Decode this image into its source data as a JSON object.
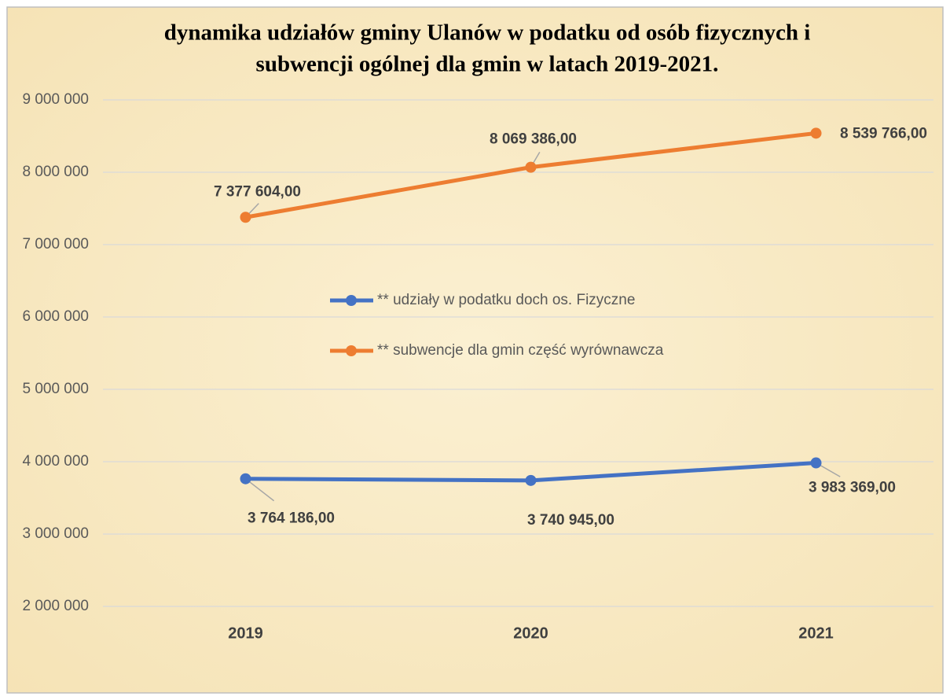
{
  "chart_data": {
    "type": "line",
    "title": [
      "dynamika udziałów gminy Ulanów w podatku od osób fizycznych i",
      "subwencji ogólnej dla gmin w latach 2019-2021."
    ],
    "categories": [
      "2019",
      "2020",
      "2021"
    ],
    "series": [
      {
        "name": "** udziały w podatku doch os. Fizyczne",
        "color": "#4472c4",
        "values": [
          3764186,
          3740945,
          3983369
        ],
        "value_labels": [
          "3 764 186,00",
          "3 740 945,00",
          "3 983 369,00"
        ]
      },
      {
        "name": "** subwencje dla gmin część wyrównawcza",
        "color": "#ed7d31",
        "values": [
          7377604,
          8069386,
          8539766
        ],
        "value_labels": [
          "7 377 604,00",
          "8 069 386,00",
          "8 539 766,00"
        ]
      }
    ],
    "ylim": [
      2000000,
      9000000
    ],
    "yticks": [
      {
        "value": 2000000,
        "label": "2 000 000"
      },
      {
        "value": 3000000,
        "label": "3 000 000"
      },
      {
        "value": 4000000,
        "label": "4 000 000"
      },
      {
        "value": 5000000,
        "label": "5 000 000"
      },
      {
        "value": 6000000,
        "label": "6 000 000"
      },
      {
        "value": 7000000,
        "label": "7 000 000"
      },
      {
        "value": 8000000,
        "label": "8 000 000"
      },
      {
        "value": 9000000,
        "label": "9 000 000"
      }
    ],
    "grid": true
  }
}
